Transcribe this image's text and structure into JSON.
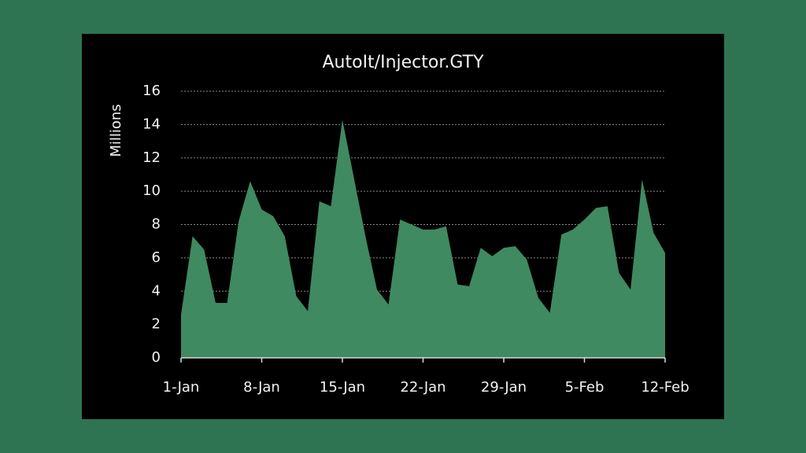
{
  "chart_data": {
    "type": "area",
    "title": "AutoIt/Injector.GTY",
    "y_label": "Millions",
    "categories": [
      "1-Jan",
      null,
      null,
      null,
      null,
      null,
      null,
      "8-Jan",
      null,
      null,
      null,
      null,
      null,
      null,
      "15-Jan",
      null,
      null,
      null,
      null,
      null,
      null,
      "22-Jan",
      null,
      null,
      null,
      null,
      null,
      null,
      "29-Jan",
      null,
      null,
      null,
      null,
      null,
      null,
      "5-Feb",
      null,
      null,
      null,
      null,
      null,
      null,
      "12-Feb"
    ],
    "values": [
      2.6,
      7.3,
      6.5,
      3.3,
      3.3,
      8.2,
      10.6,
      8.9,
      8.5,
      7.3,
      3.7,
      2.8,
      9.4,
      9.1,
      14.3,
      10.8,
      7.3,
      4.1,
      3.2,
      8.3,
      8.0,
      7.7,
      7.7,
      7.9,
      4.4,
      4.3,
      6.6,
      6.1,
      6.6,
      6.7,
      5.9,
      3.6,
      2.7,
      7.4,
      7.7,
      8.3,
      9.0,
      9.1,
      5.1,
      4.1,
      10.7,
      7.5,
      6.3
    ],
    "color": "#3f8a60",
    "ylim": [
      0,
      16
    ],
    "yticks": [
      0,
      2,
      4,
      6,
      8,
      10,
      12,
      14,
      16
    ],
    "grid": true
  }
}
